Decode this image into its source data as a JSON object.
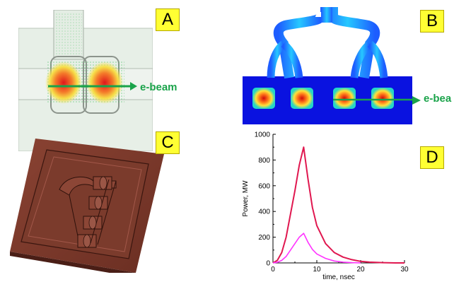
{
  "panels": {
    "a": {
      "label": "A",
      "beam_label": "e-beam"
    },
    "b": {
      "label": "B",
      "beam_label": "e-bea"
    },
    "c": {
      "label": "C"
    },
    "d": {
      "label": "D"
    }
  },
  "colors": {
    "beam": "#1aa34a",
    "label_bg": "#ffff33",
    "series_1": "#e0174f",
    "series_2": "#ff33ff",
    "copper": "#7b3b2c"
  },
  "chart_data": {
    "type": "line",
    "xlabel": "time, nsec",
    "ylabel": "Power, MW",
    "xlim": [
      0,
      30
    ],
    "ylim": [
      0,
      1000
    ],
    "x_ticks": [
      "0",
      "10",
      "20",
      "30"
    ],
    "y_ticks": [
      "0",
      "200",
      "400",
      "600",
      "800",
      "1000"
    ],
    "grid": false,
    "series": [
      {
        "x": [
          0,
          1,
          2,
          3,
          4,
          5,
          6,
          6.5,
          7,
          8,
          9,
          10,
          12,
          14,
          16,
          18,
          20,
          22,
          25,
          28,
          30
        ],
        "values": [
          0,
          20,
          80,
          200,
          380,
          560,
          760,
          830,
          900,
          650,
          430,
          290,
          150,
          80,
          45,
          25,
          12,
          6,
          2,
          0,
          0
        ]
      },
      {
        "x": [
          0,
          1,
          2,
          3,
          4,
          5,
          6,
          6.5,
          7,
          8,
          9,
          10,
          12,
          14,
          16,
          18,
          20
        ],
        "values": [
          0,
          5,
          20,
          50,
          100,
          150,
          200,
          215,
          230,
          160,
          105,
          70,
          35,
          15,
          6,
          2,
          0
        ]
      }
    ]
  }
}
